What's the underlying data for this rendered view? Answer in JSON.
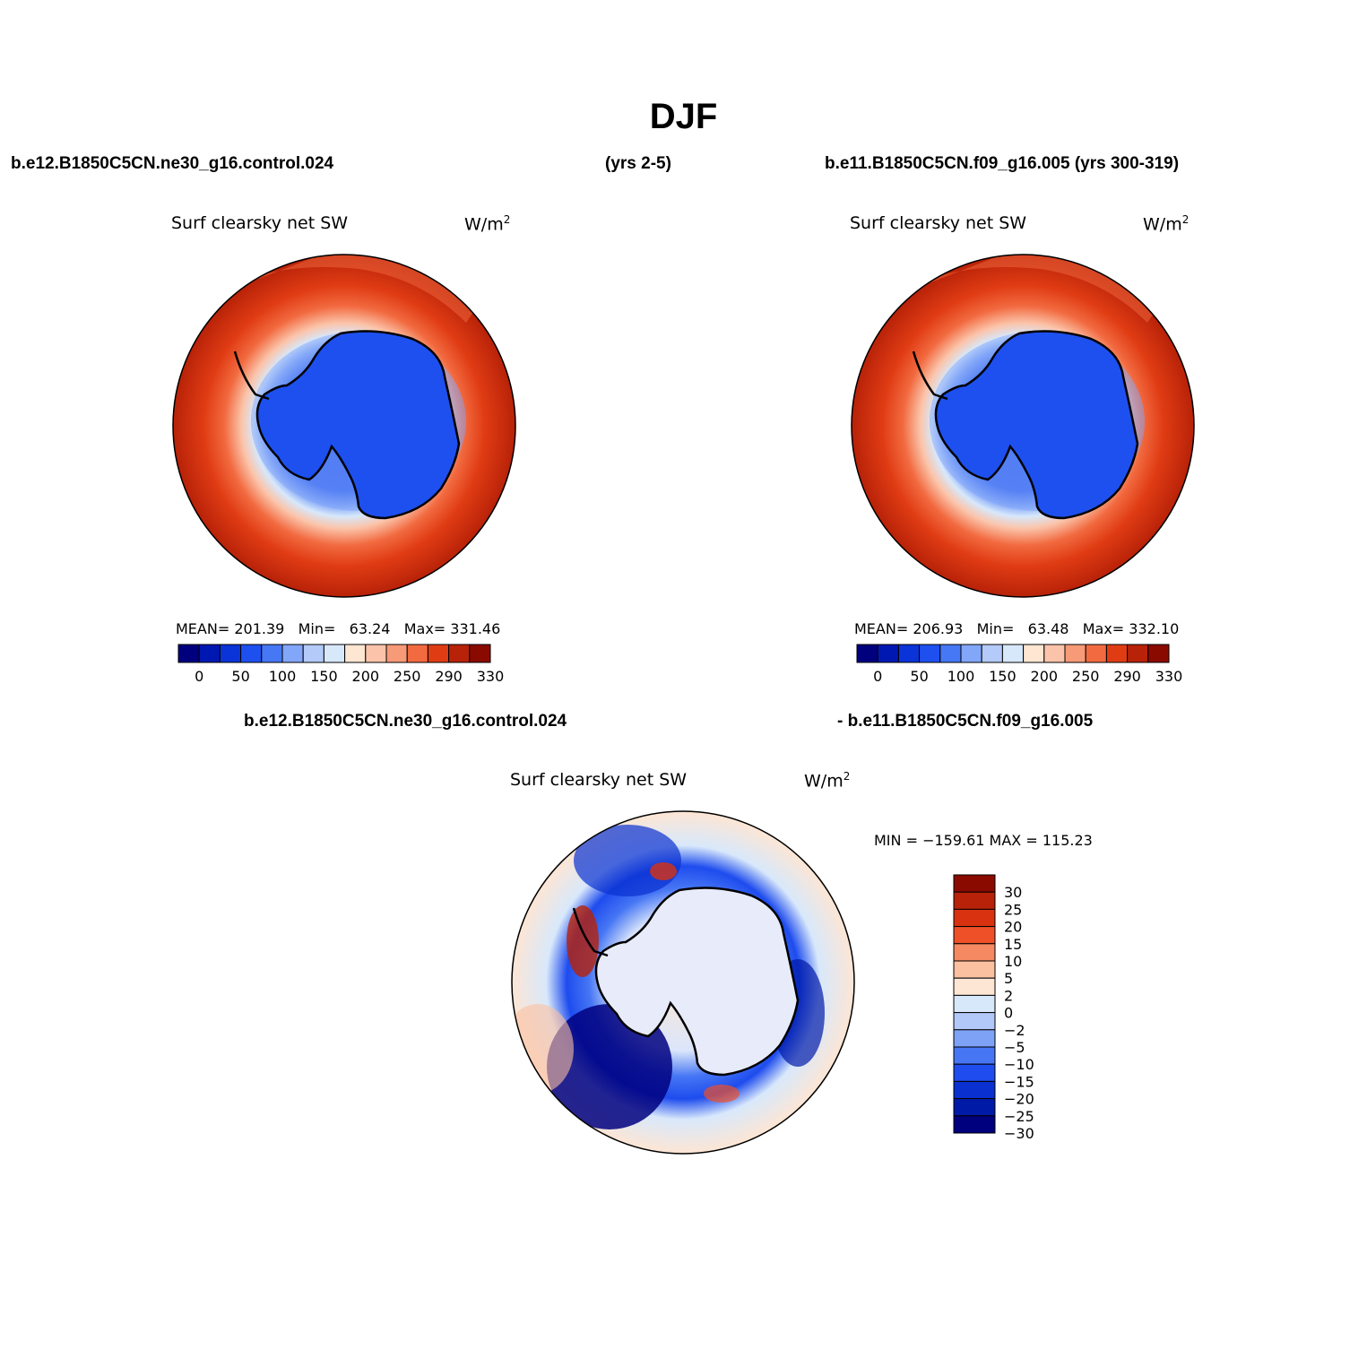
{
  "title": "DJF",
  "header": {
    "run1": "b.e12.B1850C5CN.ne30_g16.control.024",
    "run1_years": "(yrs 2-5)",
    "run2": "b.e11.B1850C5CN.f09_g16.005 (yrs 300-319)",
    "diff_left": "b.e12.B1850C5CN.ne30_g16.control.024",
    "diff_right": "- b.e11.B1850C5CN.f09_g16.005"
  },
  "panels": [
    {
      "variable": "Surf clearsky net SW",
      "units": "W/m",
      "units_sup": "2",
      "stats": {
        "mean_label": "MEAN=",
        "mean": "201.39",
        "min_label": "Min=",
        "min": "63.24",
        "max_label": "Max=",
        "max": "331.46"
      }
    },
    {
      "variable": "Surf clearsky net SW",
      "units": "W/m",
      "units_sup": "2",
      "stats": {
        "mean_label": "MEAN=",
        "mean": "206.93",
        "min_label": "Min=",
        "min": "63.48",
        "max_label": "Max=",
        "max": "332.10"
      }
    }
  ],
  "diff_panel": {
    "variable": "Surf clearsky net SW",
    "units": "W/m",
    "units_sup": "2",
    "minmax": "MIN = −159.61 MAX = 115.23"
  },
  "colorbar_top": {
    "colors": [
      "#00007f",
      "#0018b2",
      "#0a34d8",
      "#1e50f0",
      "#4678f5",
      "#82a6f8",
      "#b4caf8",
      "#d7e8fb",
      "#fde6d2",
      "#fbc4aa",
      "#f79a78",
      "#f26a40",
      "#e03c14",
      "#b82208",
      "#8b0a00"
    ],
    "labels": [
      "0",
      "50",
      "100",
      "150",
      "200",
      "250",
      "290",
      "330"
    ]
  },
  "colorbar_diff": {
    "colors": [
      "#8b0a00",
      "#b82208",
      "#d83210",
      "#ee5028",
      "#f58a62",
      "#fbc0a0",
      "#fde6d4",
      "#d8e8fb",
      "#b2c8f8",
      "#7ea2f6",
      "#4676f4",
      "#1e4cee",
      "#0a30d0",
      "#001aa8",
      "#00007f"
    ],
    "labels": [
      "30",
      "25",
      "20",
      "15",
      "10",
      "5",
      "2",
      "0",
      "−2",
      "−5",
      "−10",
      "−15",
      "−20",
      "−25",
      "−30"
    ]
  },
  "icons": {
    "coastline": "antarctica-coastline-icon"
  }
}
